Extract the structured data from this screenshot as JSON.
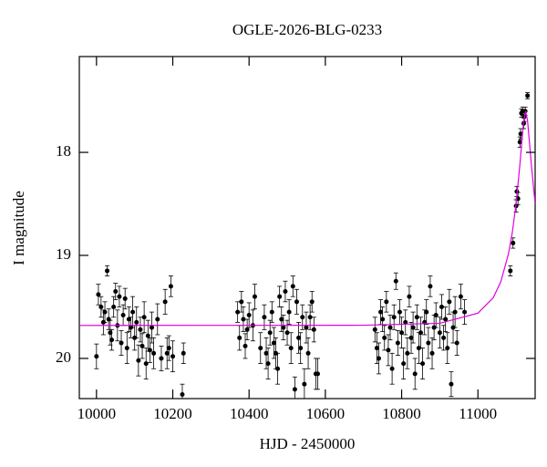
{
  "chart_data": {
    "type": "scatter",
    "title": "OGLE-2026-BLG-0233",
    "x_label": "HJD - 2450000",
    "y_label": "I magnitude",
    "xlim": [
      9955,
      11150
    ],
    "ylim": [
      20.39,
      17.07
    ],
    "y_inverted": true,
    "xticks": [
      10000,
      10200,
      10400,
      10600,
      10800,
      11000
    ],
    "yticks": [
      18,
      19,
      20
    ],
    "series": [
      {
        "name": "data",
        "color": "#000000",
        "kind": "points",
        "x": [
          10000,
          10005,
          10012,
          10018,
          10022,
          10028,
          10032,
          10036,
          10040,
          10045,
          10050,
          10055,
          10060,
          10065,
          10070,
          10075,
          10080,
          10085,
          10090,
          10095,
          10100,
          10105,
          10110,
          10115,
          10120,
          10125,
          10130,
          10135,
          10140,
          10145,
          10150,
          10160,
          10170,
          10180,
          10185,
          10190,
          10195,
          10200,
          10225,
          10228,
          10370,
          10375,
          10380,
          10385,
          10390,
          10395,
          10400,
          10410,
          10415,
          10430,
          10440,
          10445,
          10450,
          10455,
          10460,
          10465,
          10470,
          10475,
          10480,
          10485,
          10490,
          10495,
          10500,
          10505,
          10510,
          10515,
          10520,
          10525,
          10530,
          10535,
          10540,
          10545,
          10550,
          10555,
          10560,
          10565,
          10570,
          10575,
          10580,
          10730,
          10735,
          10740,
          10745,
          10750,
          10755,
          10760,
          10765,
          10770,
          10775,
          10780,
          10785,
          10790,
          10795,
          10800,
          10805,
          10810,
          10815,
          10820,
          10825,
          10830,
          10835,
          10840,
          10845,
          10850,
          10855,
          10860,
          10865,
          10870,
          10875,
          10880,
          10885,
          10890,
          10900,
          10905,
          10910,
          10915,
          10920,
          10925,
          10930,
          10935,
          10940,
          10945,
          10955,
          10965,
          11085,
          11092,
          11100,
          11102,
          11105,
          11110,
          11112,
          11114,
          11117,
          11120,
          11122,
          11124,
          11130
        ],
        "values": [
          19.98,
          19.38,
          19.5,
          19.65,
          19.55,
          19.15,
          19.62,
          19.75,
          19.82,
          19.5,
          19.35,
          19.68,
          19.4,
          19.85,
          19.58,
          19.42,
          19.9,
          19.62,
          19.7,
          19.55,
          19.8,
          19.65,
          20.02,
          19.72,
          19.88,
          19.6,
          20.05,
          19.78,
          19.92,
          19.7,
          19.95,
          19.62,
          20.0,
          19.45,
          19.95,
          19.9,
          19.3,
          19.98,
          20.35,
          19.95,
          19.55,
          19.8,
          19.45,
          19.62,
          19.88,
          19.72,
          19.58,
          19.68,
          19.4,
          19.9,
          19.6,
          19.95,
          20.05,
          19.75,
          19.55,
          19.85,
          19.95,
          20.1,
          19.4,
          19.62,
          19.7,
          19.35,
          19.75,
          19.55,
          19.9,
          19.3,
          20.3,
          19.45,
          19.8,
          19.9,
          19.6,
          20.25,
          19.7,
          19.95,
          19.6,
          19.45,
          19.72,
          20.15,
          20.15,
          19.72,
          19.9,
          20.0,
          19.55,
          19.62,
          19.8,
          19.45,
          19.92,
          19.7,
          20.1,
          19.6,
          19.25,
          19.85,
          19.55,
          19.75,
          20.05,
          19.65,
          19.95,
          19.4,
          19.8,
          19.7,
          20.15,
          19.6,
          19.9,
          19.75,
          20.05,
          19.65,
          19.55,
          19.85,
          19.3,
          19.95,
          19.7,
          19.58,
          19.75,
          19.5,
          19.8,
          19.62,
          19.9,
          19.45,
          20.25,
          19.7,
          19.55,
          19.85,
          19.4,
          19.55,
          19.15,
          18.88,
          18.52,
          18.38,
          18.45,
          17.9,
          17.82,
          17.62,
          17.6,
          17.72,
          17.65,
          17.6,
          17.45
        ],
        "errors": [
          0.12,
          0.1,
          0.1,
          0.12,
          0.1,
          0.05,
          0.1,
          0.12,
          0.1,
          0.1,
          0.08,
          0.15,
          0.1,
          0.12,
          0.1,
          0.1,
          0.15,
          0.12,
          0.1,
          0.15,
          0.12,
          0.15,
          0.15,
          0.12,
          0.12,
          0.15,
          0.15,
          0.15,
          0.12,
          0.15,
          0.15,
          0.15,
          0.12,
          0.12,
          0.15,
          0.12,
          0.1,
          0.15,
          0.1,
          0.1,
          0.1,
          0.12,
          0.1,
          0.12,
          0.12,
          0.1,
          0.12,
          0.15,
          0.12,
          0.15,
          0.12,
          0.15,
          0.15,
          0.12,
          0.1,
          0.15,
          0.15,
          0.15,
          0.1,
          0.12,
          0.12,
          0.1,
          0.12,
          0.12,
          0.15,
          0.1,
          0.12,
          0.12,
          0.15,
          0.15,
          0.12,
          0.15,
          0.15,
          0.15,
          0.12,
          0.1,
          0.12,
          0.15,
          0.15,
          0.12,
          0.15,
          0.15,
          0.12,
          0.12,
          0.12,
          0.1,
          0.15,
          0.12,
          0.15,
          0.12,
          0.08,
          0.12,
          0.12,
          0.15,
          0.15,
          0.12,
          0.15,
          0.1,
          0.15,
          0.15,
          0.15,
          0.12,
          0.15,
          0.15,
          0.15,
          0.12,
          0.12,
          0.15,
          0.1,
          0.15,
          0.12,
          0.12,
          0.15,
          0.12,
          0.12,
          0.12,
          0.15,
          0.12,
          0.12,
          0.15,
          0.15,
          0.12,
          0.12,
          0.12,
          0.05,
          0.05,
          0.06,
          0.05,
          0.06,
          0.05,
          0.05,
          0.04,
          0.04,
          0.05,
          0.05,
          0.04,
          0.03
        ]
      },
      {
        "name": "model",
        "color": "#e000e0",
        "kind": "line",
        "x": [
          9955,
          10700,
          10900,
          11000,
          11040,
          11060,
          11080,
          11090,
          11100,
          11110,
          11115,
          11120,
          11125,
          11130,
          11135,
          11140,
          11150
        ],
        "values": [
          19.68,
          19.678,
          19.659,
          19.561,
          19.412,
          19.256,
          18.986,
          18.78,
          18.5,
          18.12,
          17.9,
          17.69,
          17.6,
          17.69,
          17.9,
          18.12,
          18.5
        ]
      }
    ]
  }
}
